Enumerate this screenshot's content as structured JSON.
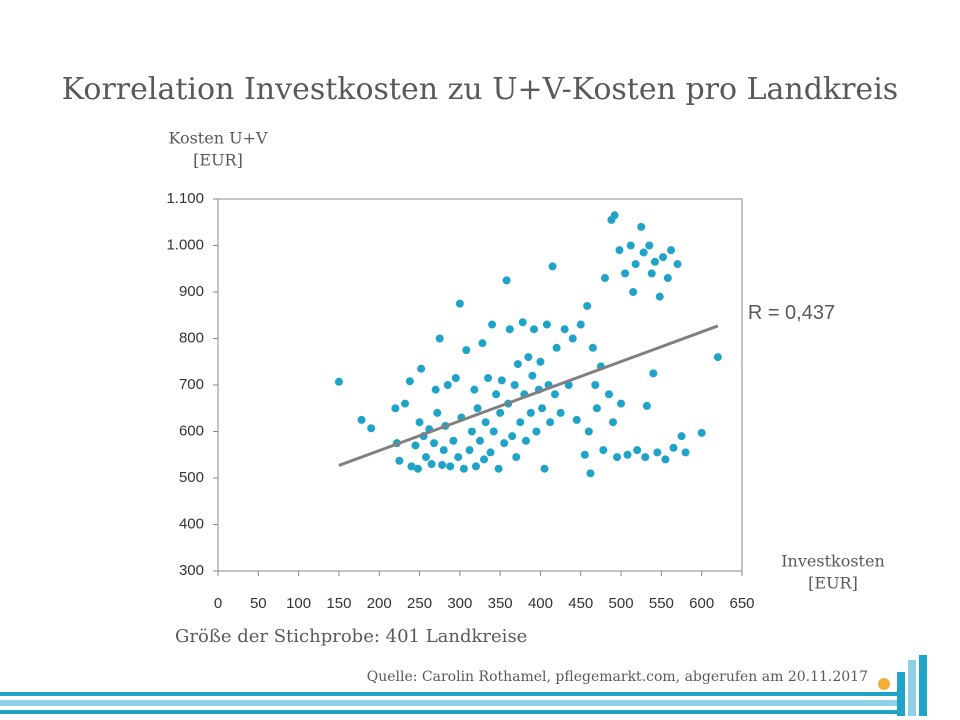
{
  "chart_data": {
    "type": "scatter",
    "title": "Korrelation Investkosten zu U+V-Kosten pro Landkreis",
    "y_label": [
      "Kosten U+V",
      "[EUR]"
    ],
    "x_label": [
      "Investkosten",
      "[EUR]"
    ],
    "subtitle": "Größe der Stichprobe: 401 Landkreise",
    "source": "Quelle: Carolin Rothamel, pflegemarkt.com, abgerufen am 20.11.2017",
    "annotation": "R = 0,437",
    "color": "#1fa3c8",
    "trendline": {
      "color": "#808080",
      "x": [
        150,
        620
      ],
      "y": [
        527,
        827
      ]
    },
    "xlim": [
      0,
      650
    ],
    "xticks": [
      0,
      50,
      100,
      150,
      200,
      250,
      300,
      350,
      400,
      450,
      500,
      550,
      600,
      650
    ],
    "ylim": [
      300,
      1100
    ],
    "yticks": [
      300,
      400,
      500,
      600,
      700,
      800,
      900,
      {
        "value": 1000,
        "label": "1.000"
      },
      {
        "value": 1100,
        "label": "1.100"
      }
    ],
    "x": [
      150,
      178,
      190,
      220,
      222,
      225,
      232,
      238,
      240,
      245,
      248,
      250,
      252,
      255,
      258,
      262,
      265,
      268,
      270,
      272,
      275,
      278,
      280,
      282,
      285,
      288,
      292,
      295,
      298,
      300,
      302,
      305,
      308,
      312,
      315,
      318,
      320,
      322,
      325,
      328,
      330,
      332,
      335,
      338,
      340,
      342,
      345,
      348,
      350,
      352,
      355,
      358,
      360,
      362,
      365,
      368,
      370,
      372,
      375,
      378,
      380,
      382,
      385,
      388,
      390,
      392,
      395,
      398,
      400,
      402,
      405,
      408,
      410,
      412,
      415,
      418,
      420,
      425,
      430,
      435,
      440,
      445,
      450,
      455,
      458,
      460,
      462,
      465,
      468,
      470,
      475,
      478,
      480,
      485,
      488,
      490,
      492,
      495,
      498,
      500,
      505,
      508,
      512,
      515,
      518,
      520,
      525,
      528,
      530,
      532,
      535,
      538,
      540,
      542,
      545,
      548,
      552,
      555,
      558,
      562,
      565,
      570,
      575,
      580,
      600,
      620
    ],
    "y": [
      707,
      625,
      607,
      650,
      575,
      537,
      660,
      708,
      525,
      570,
      520,
      620,
      735,
      590,
      545,
      605,
      530,
      575,
      690,
      640,
      800,
      528,
      560,
      612,
      700,
      525,
      580,
      715,
      545,
      875,
      630,
      520,
      775,
      560,
      600,
      690,
      525,
      650,
      580,
      790,
      540,
      620,
      715,
      555,
      830,
      600,
      680,
      520,
      640,
      710,
      575,
      925,
      660,
      820,
      590,
      700,
      545,
      745,
      620,
      835,
      680,
      580,
      760,
      640,
      720,
      820,
      600,
      690,
      750,
      650,
      520,
      830,
      700,
      620,
      955,
      680,
      780,
      640,
      820,
      700,
      800,
      625,
      830,
      550,
      870,
      600,
      510,
      780,
      700,
      650,
      740,
      560,
      930,
      680,
      1055,
      620,
      1065,
      545,
      990,
      660,
      940,
      550,
      1000,
      900,
      960,
      560,
      1040,
      985,
      545,
      655,
      1000,
      940,
      725,
      965,
      555,
      890,
      975,
      540,
      930,
      990,
      565,
      960,
      590,
      555,
      597,
      760
    ]
  }
}
